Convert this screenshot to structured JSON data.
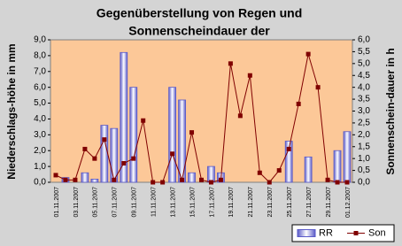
{
  "chart_data": {
    "type": "bar",
    "title": [
      "Gegenüberstellung von Regen und",
      "Sonnenscheindauer der"
    ],
    "ylabel": "Niederschlags-höhe in mm",
    "y2label": "Sonnenschein-dauer in h",
    "categories": [
      "01.11.2007",
      null,
      "03.11.2007",
      null,
      "05.11.2007",
      null,
      "07.11.2007",
      null,
      "09.11.2007",
      null,
      "11.11.2007",
      null,
      "13.11.2007",
      null,
      "15.11.2007",
      null,
      "17.11.2007",
      null,
      "19.11.2007",
      null,
      "21.11.2007",
      null,
      "23.11.2007",
      null,
      "25.11.2007",
      null,
      "27.11.2007",
      null,
      "29.11.2007",
      null,
      "01.12.2007"
    ],
    "series": [
      {
        "name": "RR",
        "type": "bar",
        "axis": "y",
        "color": "#5a5ac8",
        "values": [
          0,
          0.3,
          0,
          0.6,
          0.2,
          3.6,
          3.4,
          8.2,
          6.0,
          0,
          0,
          0,
          6.0,
          5.2,
          0.6,
          0,
          1.0,
          0.6,
          0,
          0,
          0,
          0,
          0,
          0,
          2.6,
          0,
          1.6,
          0,
          0,
          2.0,
          3.2
        ]
      },
      {
        "name": "Son",
        "type": "line",
        "axis": "y2",
        "color": "#800000",
        "values": [
          0.3,
          0.1,
          0.1,
          1.4,
          1.0,
          1.8,
          0.1,
          0.8,
          1.0,
          2.6,
          0,
          0,
          1.2,
          0.1,
          2.1,
          0.1,
          0,
          0.1,
          5.0,
          2.8,
          4.5,
          0.4,
          0,
          0.5,
          1.4,
          3.3,
          5.4,
          4.0,
          0.1,
          0,
          0
        ]
      }
    ],
    "ylim": [
      0,
      9
    ],
    "yticks": [
      {
        "value": 0,
        "label": "0,0"
      },
      {
        "value": 1,
        "label": "1,0"
      },
      {
        "value": 2,
        "label": "2,0"
      },
      {
        "value": 3,
        "label": "3,0"
      },
      {
        "value": 4,
        "label": "4,0"
      },
      {
        "value": 5,
        "label": "5,0"
      },
      {
        "value": 6,
        "label": "6,0"
      },
      {
        "value": 7,
        "label": "7,0"
      },
      {
        "value": 8,
        "label": "8,0"
      },
      {
        "value": 9,
        "label": "9,0"
      }
    ],
    "y2lim": [
      0,
      6
    ],
    "y2ticks": [
      {
        "value": 0,
        "label": "0,0"
      },
      {
        "value": 0.5,
        "label": "0,5"
      },
      {
        "value": 1,
        "label": "1,0"
      },
      {
        "value": 1.5,
        "label": "1,5"
      },
      {
        "value": 2,
        "label": "2,0"
      },
      {
        "value": 2.5,
        "label": "2,5"
      },
      {
        "value": 3,
        "label": "3,0"
      },
      {
        "value": 3.5,
        "label": "3,5"
      },
      {
        "value": 4,
        "label": "4,0"
      },
      {
        "value": 4.5,
        "label": "4,5"
      },
      {
        "value": 5,
        "label": "5,0"
      },
      {
        "value": 5.5,
        "label": "5,5"
      },
      {
        "value": 6,
        "label": "6,0"
      }
    ],
    "plot_background": "#fcc898",
    "legend": "bottom-right"
  }
}
